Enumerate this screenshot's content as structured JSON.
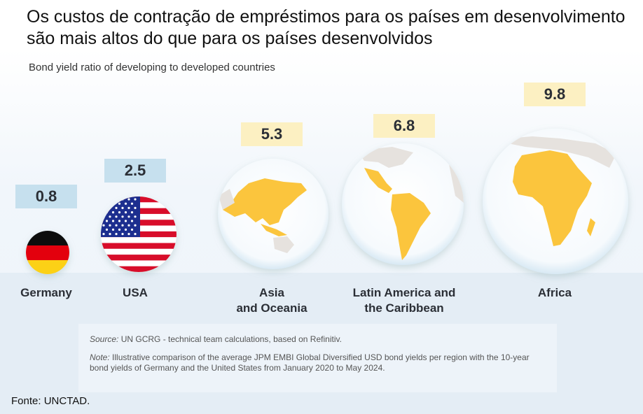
{
  "title": "Os custos de contração de empréstimos para os países em desenvolvimento são mais altos do que para os países desenvolvidos",
  "chart_data": {
    "type": "bar",
    "subtitle": "Bond yield ratio of developing to developed countries",
    "categories": [
      "Germany",
      "USA",
      "Asia and Oceania",
      "Latin America and the Caribbean",
      "Africa"
    ],
    "values": [
      0.8,
      2.5,
      5.3,
      6.8,
      9.8
    ],
    "value_labels": [
      "0.8",
      "2.5",
      "5.3",
      "6.8",
      "9.8"
    ],
    "label_lines": [
      [
        "Germany"
      ],
      [
        "USA"
      ],
      [
        "Asia",
        "and Oceania"
      ],
      [
        "Latin America and",
        "the Caribbean"
      ],
      [
        "Africa"
      ]
    ],
    "icons": [
      "germany-flag",
      "usa-flag",
      "asia-globe",
      "latin-america-globe",
      "africa-globe"
    ],
    "colors": {
      "developed_box": "#c6e0ee",
      "developing_box": "#fcf0c2",
      "map_highlight": "#fbc53c",
      "map_land": "#e6e2de"
    }
  },
  "source_label": "Source:",
  "source_text": " UN GCRG - technical team calculations, based on Refinitiv.",
  "note_label": "Note:",
  "note_text": " Illustrative comparison of the average JPM EMBI Global Diversified USD bond yields per region with the 10-year bond yields of Germany and the United States from January 2020 to May 2024.",
  "fonte": "Fonte: UNCTAD."
}
